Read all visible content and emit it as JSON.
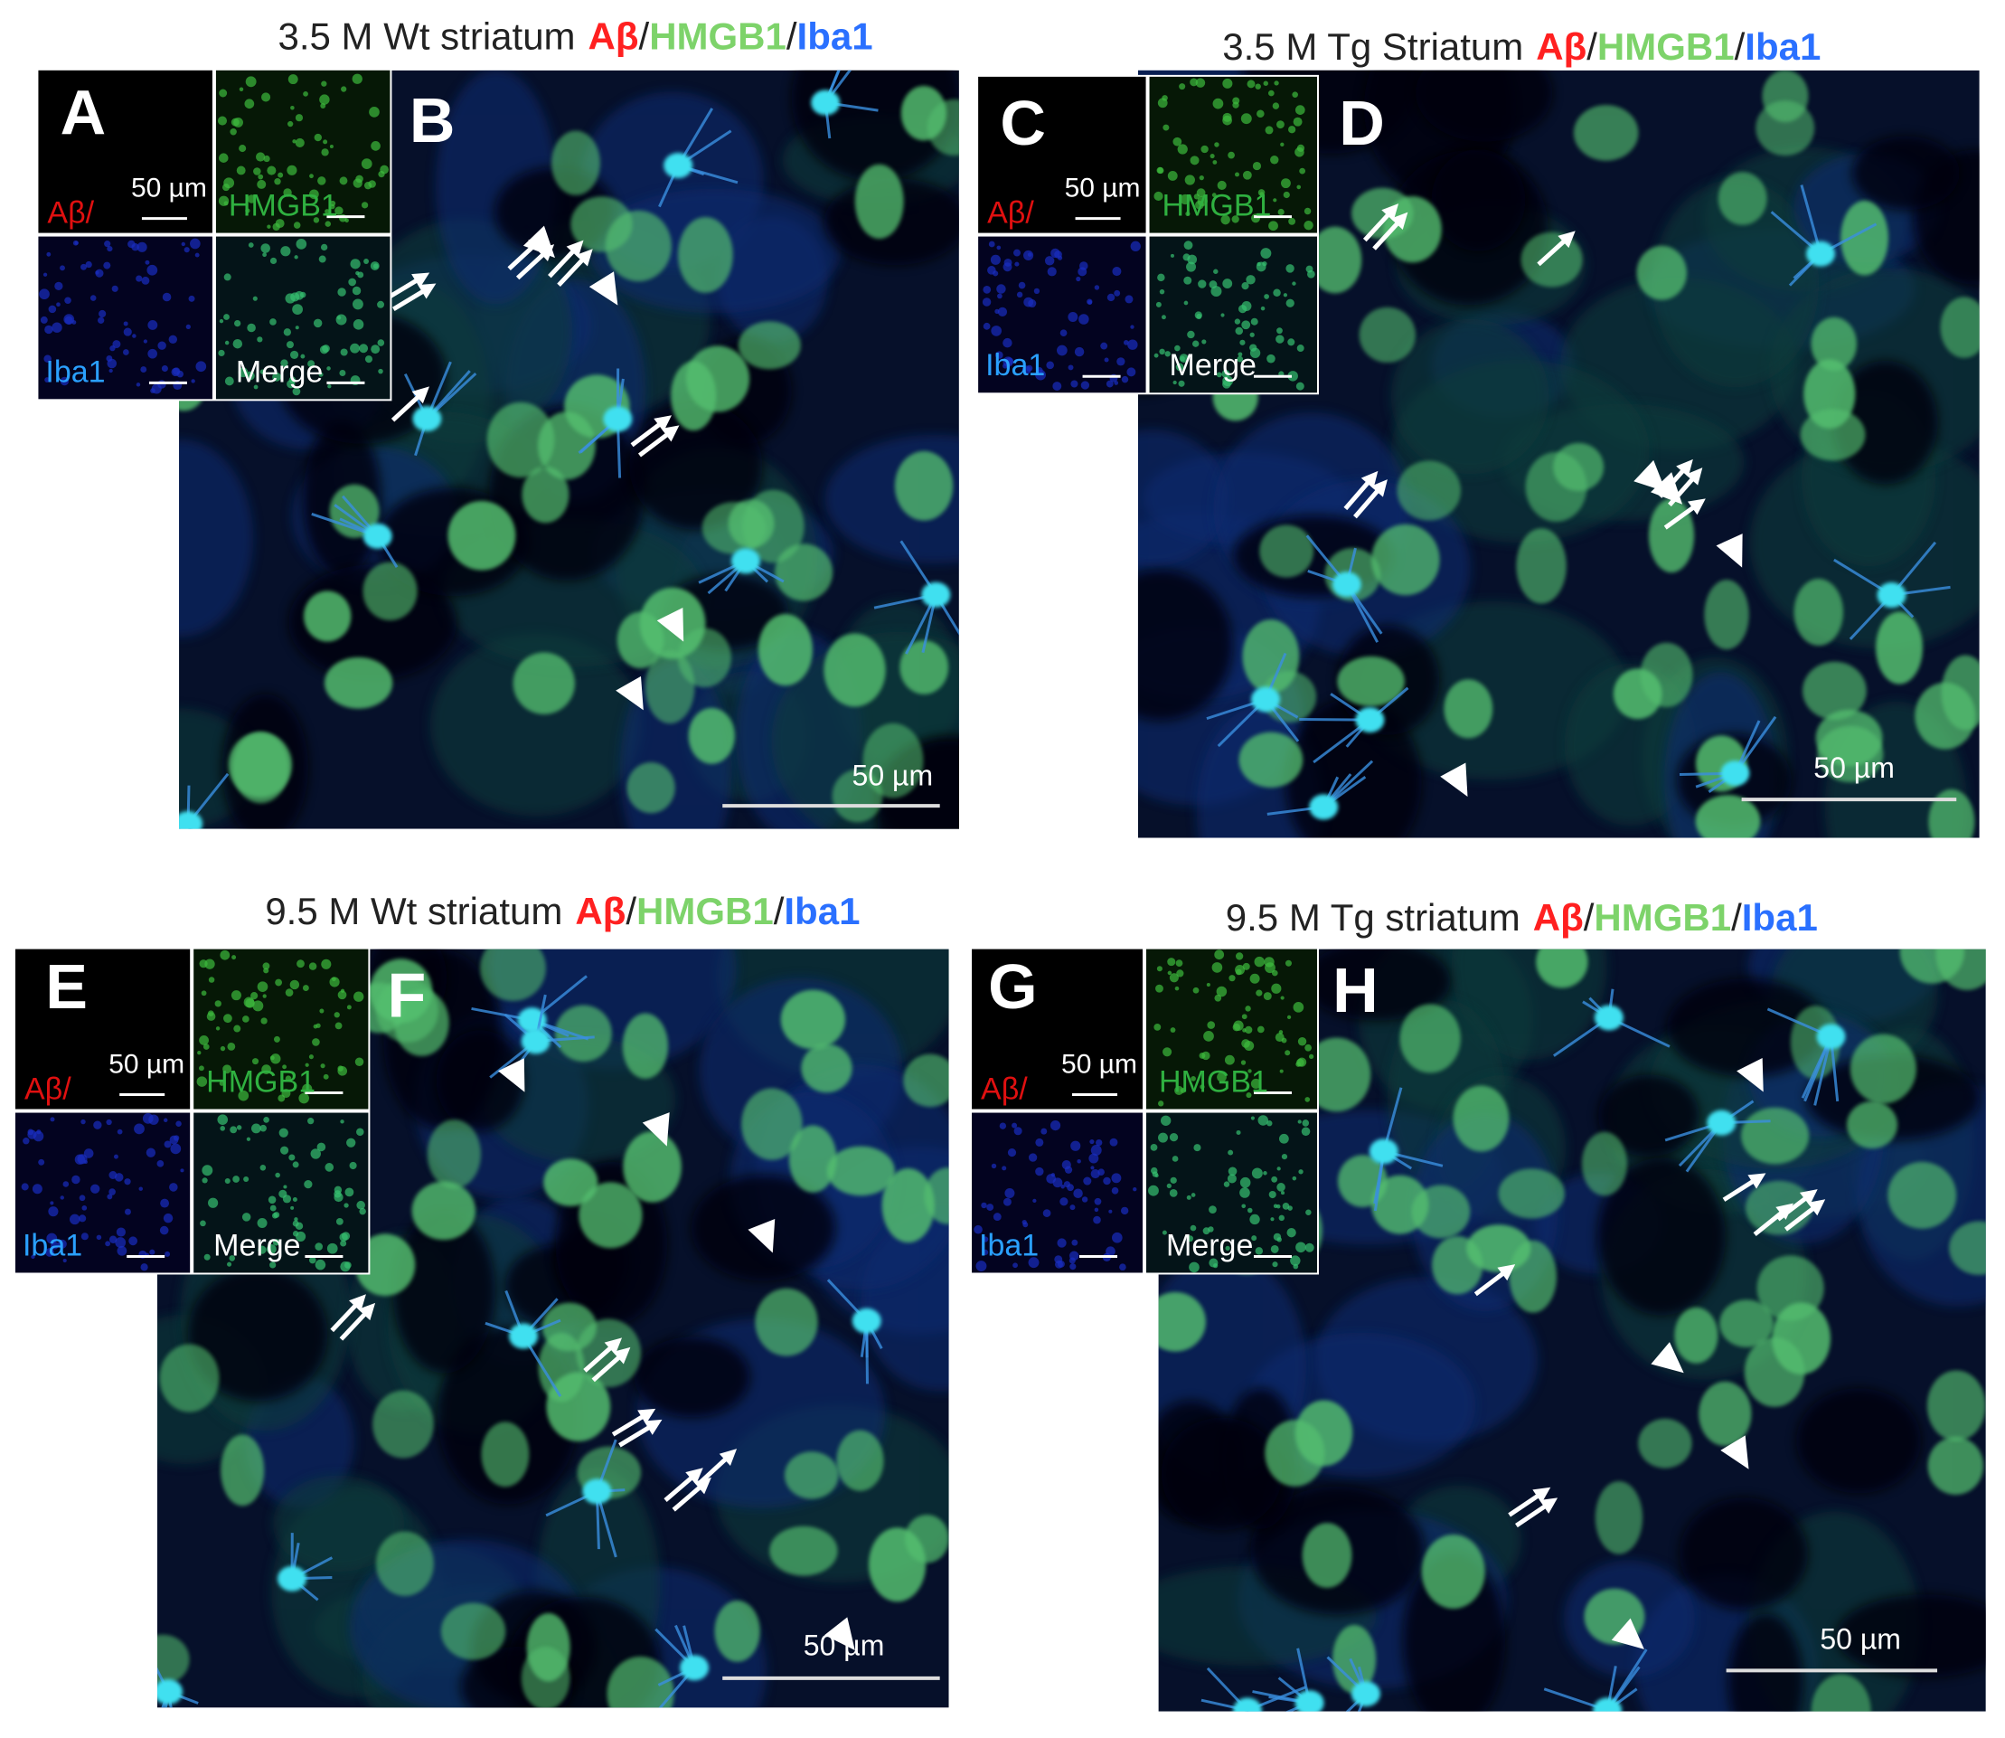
{
  "panels": [
    {
      "title": {
        "sample": "3.5 M Wt striatum",
        "abeta": "Aβ",
        "sep1": "/",
        "hmgb1": "HMGB1",
        "sep2": "/",
        "iba1": "Iba1"
      },
      "inset_letter": "A",
      "main_letter": "B",
      "inset": {
        "abeta": "Aβ/",
        "scale": "50 µm",
        "hmgb1": "HMGB1",
        "iba1": "Iba1",
        "merge": "Merge"
      },
      "scale": "50 µm"
    },
    {
      "title": {
        "sample": "3.5 M Tg Striatum",
        "abeta": "Aβ",
        "sep1": "/",
        "hmgb1": "HMGB1",
        "sep2": "/",
        "iba1": "Iba1"
      },
      "inset_letter": "C",
      "main_letter": "D",
      "inset": {
        "abeta": "Aβ/",
        "scale": "50 µm",
        "hmgb1": "HMGB1",
        "iba1": "Iba1",
        "merge": "Merge"
      },
      "scale": "50 µm"
    },
    {
      "title": {
        "sample": "9.5 M Wt striatum",
        "abeta": "Aβ",
        "sep1": "/",
        "hmgb1": "HMGB1",
        "sep2": "/",
        "iba1": "Iba1"
      },
      "inset_letter": "E",
      "main_letter": "F",
      "inset": {
        "abeta": "Aβ/",
        "scale": "50 µm",
        "hmgb1": "HMGB1",
        "iba1": "Iba1",
        "merge": "Merge"
      },
      "scale": "50 µm"
    },
    {
      "title": {
        "sample": "9.5 M Tg striatum",
        "abeta": "Aβ",
        "sep1": "/",
        "hmgb1": "HMGB1",
        "sep2": "/",
        "iba1": "Iba1"
      },
      "inset_letter": "G",
      "main_letter": "H",
      "inset": {
        "abeta": "Aβ/",
        "scale": "50 µm",
        "hmgb1": "HMGB1",
        "iba1": "Iba1",
        "merge": "Merge"
      },
      "scale": "50 µm"
    }
  ]
}
